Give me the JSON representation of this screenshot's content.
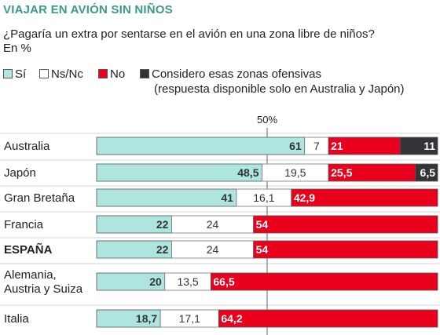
{
  "colors": {
    "si": "#aee6df",
    "nsnc": "#ffffff",
    "no": "#e8001c",
    "ofensivas": "#333438",
    "title": "#3a9a8a"
  },
  "header": {
    "title": "VIAJAR EN AVIÓN SIN NIÑOS",
    "subtitle": "¿Pagaría un extra por sentarse en el avión en una zona libre de niños?",
    "unit": "En %"
  },
  "legend": {
    "items": [
      {
        "key": "si",
        "label": "Sí"
      },
      {
        "key": "nsnc",
        "label": "Ns/Nc"
      },
      {
        "key": "no",
        "label": "No"
      },
      {
        "key": "ofensivas",
        "label": "Considero esas zonas ofensivas"
      }
    ],
    "note": "(respuesta disponible solo en Australia y Japón)"
  },
  "chart_data": {
    "type": "bar",
    "orientation": "horizontal",
    "stacked": true,
    "reference_label": "50%",
    "reference_value": 50,
    "xlim": [
      0,
      100
    ],
    "categories": [
      "Australia",
      "Japón",
      "Gran Bretaña",
      "Francia",
      "ESPAÑA",
      "Alemania,\nAustria y Suiza",
      "Italia"
    ],
    "series": [
      {
        "name": "Sí",
        "key": "si",
        "values": [
          61,
          48.5,
          41,
          22,
          22,
          20,
          18.7
        ],
        "labels": [
          "61",
          "48,5",
          "41",
          "22",
          "22",
          "20",
          "18,7"
        ]
      },
      {
        "name": "Ns/Nc",
        "key": "nsnc",
        "values": [
          7,
          19.5,
          16.1,
          24,
          24,
          13.5,
          17.1
        ],
        "labels": [
          "7",
          "19,5",
          "16,1",
          "24",
          "24",
          "13,5",
          "17,1"
        ]
      },
      {
        "name": "No",
        "key": "no",
        "values": [
          21,
          25.5,
          42.9,
          54,
          54,
          66.5,
          64.2
        ],
        "labels": [
          "21",
          "25,5",
          "42,9",
          "54",
          "54",
          "66,5",
          "64,2"
        ]
      },
      {
        "name": "Considero esas zonas ofensivas",
        "key": "ofensivas",
        "values": [
          11,
          6.5,
          0,
          0,
          0,
          0,
          0
        ],
        "labels": [
          "11",
          "6,5",
          "",
          "",
          "",
          "",
          ""
        ]
      }
    ]
  }
}
